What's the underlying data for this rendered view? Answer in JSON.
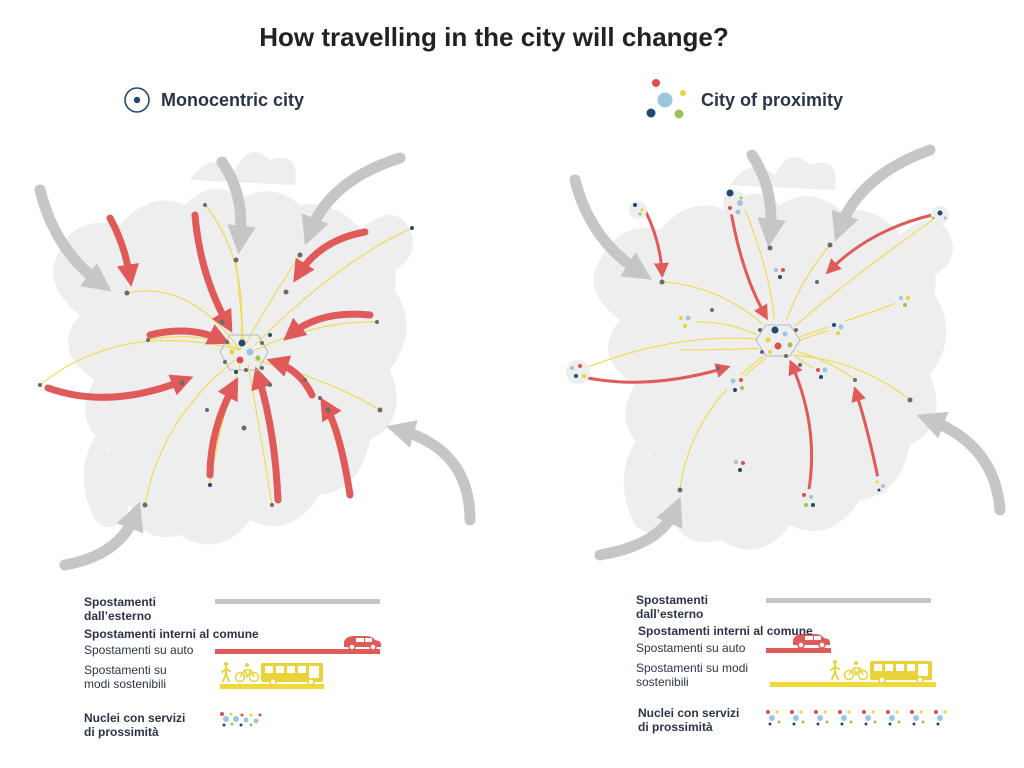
{
  "title": "How travelling in the city will change?",
  "panels": {
    "left": {
      "title": "Monocentric city",
      "legend": {
        "external": "Spostamenti dall’esterno",
        "internal": "Spostamenti interni al comune",
        "car": "Spostamenti su auto",
        "sustainable": "Spostamenti su modi sostenibili",
        "nuclei": "Nuclei con servizi di prossimità"
      }
    },
    "right": {
      "title": "City of proximity",
      "legend": {
        "external": "Spostamenti dall’esterno",
        "internal": "Spostamenti interni al comune",
        "car": "Spostamenti su auto",
        "sustainable": "Spostamenti su modi sostenibili",
        "nuclei": "Nuclei con servizi di prossimità"
      }
    }
  },
  "colors": {
    "external": "#c6c6c6",
    "car": "#e05a5a",
    "sustainable": "#f1d93a",
    "city_shape": "#eeeeee",
    "dark_blue": "#1f4a72",
    "light_blue": "#9cc6dc",
    "green": "#9dc451",
    "yellow": "#e9d33b",
    "red": "#e04e4e",
    "grey_dot": "#6b6b6b"
  },
  "icons": [
    "monocentric-icon",
    "proximity-icon",
    "car-icon",
    "pedestrian-icon",
    "bicycle-icon",
    "bus-icon"
  ]
}
